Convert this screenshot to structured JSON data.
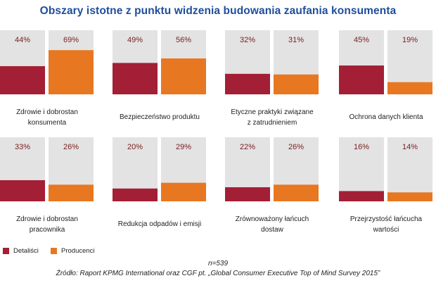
{
  "title": "Obszary istotne z punktu widzenia budowania zaufania konsumenta",
  "colors": {
    "detalisci": "#a31f35",
    "producenci": "#e87722",
    "background_bar": "#e3e3e3",
    "value_text": "#7a2020"
  },
  "legend": [
    {
      "label": "Detaliści",
      "color": "#a31f35"
    },
    {
      "label": "Producenci",
      "color": "#e87722"
    }
  ],
  "chart_data": {
    "type": "bar",
    "ylim": [
      0,
      100
    ],
    "series_names": [
      "Detaliści",
      "Producenci"
    ],
    "panels": [
      {
        "label_lines": [
          "Zdrowie i dobrostan",
          "konsumenta"
        ],
        "values": [
          44,
          69
        ],
        "value_labels": [
          "44%",
          "69%"
        ]
      },
      {
        "label_lines": [
          "Bezpieczeństwo produktu"
        ],
        "values": [
          49,
          56
        ],
        "value_labels": [
          "49%",
          "56%"
        ]
      },
      {
        "label_lines": [
          "Etyczne praktyki związane",
          "z zatrudnieniem"
        ],
        "values": [
          32,
          31
        ],
        "value_labels": [
          "32%",
          "31%"
        ]
      },
      {
        "label_lines": [
          "Ochrona danych klienta"
        ],
        "values": [
          45,
          19
        ],
        "value_labels": [
          "45%",
          "19%"
        ]
      },
      {
        "label_lines": [
          "Zdrowie i dobrostan",
          "pracownika"
        ],
        "values": [
          33,
          26
        ],
        "value_labels": [
          "33%",
          "26%"
        ]
      },
      {
        "label_lines": [
          "Redukcja odpadów i emisji"
        ],
        "values": [
          20,
          29
        ],
        "value_labels": [
          "20%",
          "29%"
        ]
      },
      {
        "label_lines": [
          "Zrównoważony łańcuch",
          "dostaw"
        ],
        "values": [
          22,
          26
        ],
        "value_labels": [
          "22%",
          "26%"
        ]
      },
      {
        "label_lines": [
          "Przejrzystość łańcucha",
          "wartości"
        ],
        "values": [
          16,
          14
        ],
        "value_labels": [
          "16%",
          "14%"
        ]
      }
    ]
  },
  "footer": {
    "n": "n=539",
    "source": "Źródło: Raport KPMG International oraz CGF pt. „Global Consumer Executive Top of Mind Survey 2015”"
  }
}
